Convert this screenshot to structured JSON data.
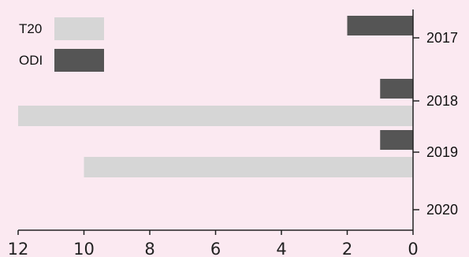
{
  "chart_data": {
    "type": "bar",
    "orientation": "horizontal",
    "title": "",
    "xlabel": "",
    "ylabel": "",
    "categories": [
      "2017",
      "2018",
      "2019",
      "2020"
    ],
    "series": [
      {
        "name": "T20",
        "color": "#d6d6d6",
        "values": [
          0,
          12,
          10,
          0
        ]
      },
      {
        "name": "ODI",
        "color": "#555555",
        "values": [
          2,
          1,
          1,
          0
        ]
      }
    ],
    "x_axis": {
      "reversed": true,
      "xlim": [
        0,
        12
      ],
      "ticks": [
        0,
        2,
        4,
        6,
        8,
        10,
        12
      ]
    },
    "y_axis_position": "right",
    "legend_position": "top-left",
    "grid": false
  }
}
